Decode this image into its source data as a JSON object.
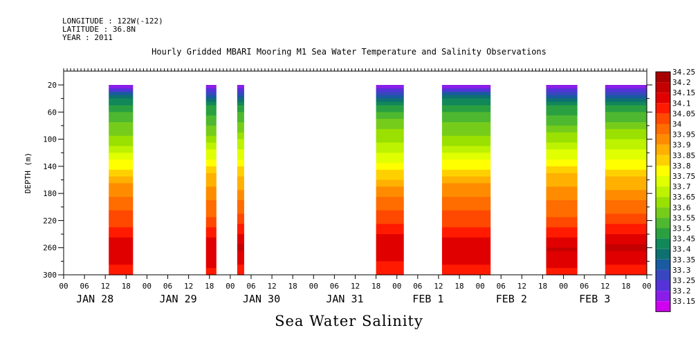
{
  "header": {
    "longitude": "LONGITUDE : 122W(-122)",
    "latitude": "LATITUDE : 36.8N",
    "year": "YEAR : 2011",
    "title": "Hourly Gridded MBARI Mooring M1 Sea Water Temperature and Salinity Observations"
  },
  "caption": "Sea Water Salinity",
  "chart_data": {
    "type": "heatmap",
    "variable": "Sea Water Salinity",
    "ylabel": "DEPTH (m)",
    "ylim": [
      300,
      0
    ],
    "y_ticks": [
      20,
      60,
      100,
      140,
      180,
      220,
      260,
      300
    ],
    "x_range_hours": [
      0,
      168
    ],
    "hour_tick_labels": [
      "00",
      "06",
      "12",
      "18",
      "00",
      "06",
      "12",
      "18",
      "00",
      "06",
      "12",
      "18",
      "00",
      "06",
      "12",
      "18",
      "00",
      "06",
      "12",
      "18",
      "00",
      "06",
      "12",
      "18",
      "00",
      "06",
      "12",
      "18",
      "00"
    ],
    "day_labels": [
      "JAN 28",
      "JAN 29",
      "JAN 30",
      "JAN 31",
      "FEB  1",
      "FEB  2",
      "FEB  3"
    ],
    "colorbar_levels": [
      34.25,
      34.2,
      34.15,
      34.1,
      34.05,
      34,
      33.95,
      33.9,
      33.85,
      33.8,
      33.75,
      33.7,
      33.65,
      33.6,
      33.55,
      33.5,
      33.45,
      33.4,
      33.35,
      33.3,
      33.25,
      33.2,
      33.15
    ],
    "colorbar_colors": [
      "#a80000",
      "#c40000",
      "#e00000",
      "#ff1a00",
      "#ff4800",
      "#ff6c00",
      "#ff8c00",
      "#ffb000",
      "#ffd000",
      "#ffff00",
      "#e0ff00",
      "#bdf200",
      "#9ae000",
      "#76cc1a",
      "#4eb830",
      "#2aa040",
      "#12885a",
      "#0e7070",
      "#1a5aa0",
      "#3a46c0",
      "#5533d8",
      "#8a1ee8",
      "#d000f0"
    ],
    "observation_segments": [
      {
        "start_hour": 13,
        "end_hour": 20
      },
      {
        "start_hour": 41,
        "end_hour": 44
      },
      {
        "start_hour": 50,
        "end_hour": 52
      },
      {
        "start_hour": 90,
        "end_hour": 98
      },
      {
        "start_hour": 109,
        "end_hour": 123
      },
      {
        "start_hour": 139,
        "end_hour": 148
      },
      {
        "start_hour": 156,
        "end_hour": 168
      }
    ],
    "depth_profile": [
      {
        "depth": 20,
        "salinity": 33.18
      },
      {
        "depth": 30,
        "salinity": 33.32
      },
      {
        "depth": 40,
        "salinity": 33.42
      },
      {
        "depth": 50,
        "salinity": 33.5
      },
      {
        "depth": 60,
        "salinity": 33.55
      },
      {
        "depth": 80,
        "salinity": 33.62
      },
      {
        "depth": 100,
        "salinity": 33.68
      },
      {
        "depth": 120,
        "salinity": 33.76
      },
      {
        "depth": 140,
        "salinity": 33.84
      },
      {
        "depth": 160,
        "salinity": 33.92
      },
      {
        "depth": 180,
        "salinity": 33.98
      },
      {
        "depth": 200,
        "salinity": 34.03
      },
      {
        "depth": 220,
        "salinity": 34.08
      },
      {
        "depth": 240,
        "salinity": 34.14
      },
      {
        "depth": 260,
        "salinity": 34.2
      },
      {
        "depth": 280,
        "salinity": 34.16
      },
      {
        "depth": 300,
        "salinity": 34.12
      }
    ]
  }
}
